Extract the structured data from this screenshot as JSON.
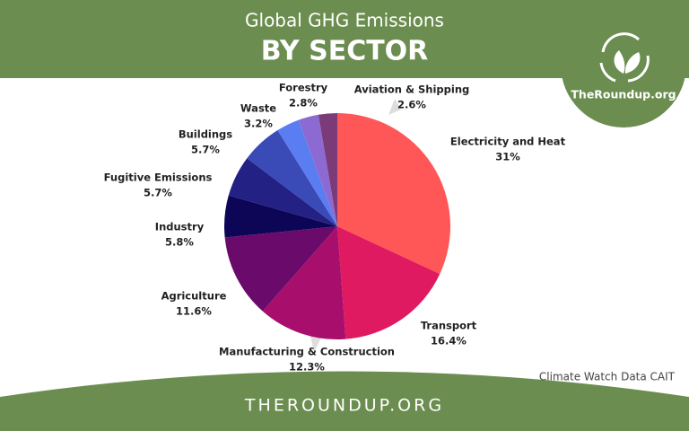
{
  "chart_data": {
    "type": "pie",
    "title": "Global GHG Emissions",
    "subtitle": "BY SECTOR",
    "logo_text": "TheRoundup.org",
    "footer": "THEROUNDUP.ORG",
    "source": "Climate Watch Data CAIT",
    "categories": [
      "Electricity and Heat",
      "Transport",
      "Manufacturing & Construction",
      "Agriculture",
      "Industry",
      "Fugitive Emissions",
      "Buildings",
      "Waste",
      "Forestry",
      "Aviation & Shipping"
    ],
    "values": [
      31,
      16.4,
      12.3,
      11.6,
      5.8,
      5.7,
      5.7,
      3.2,
      2.8,
      2.6
    ],
    "value_labels": [
      "31%",
      "16.4%",
      "12.3%",
      "11.6%",
      "5.8%",
      "5.7%",
      "5.7%",
      "3.2%",
      "2.8%",
      "2.6%"
    ],
    "colors": [
      "#ff5757",
      "#df1a60",
      "#a80f6c",
      "#6a0a6a",
      "#0d0556",
      "#242184",
      "#3a4bb8",
      "#5a7df2",
      "#8c6ad2",
      "#7b3a78"
    ]
  }
}
